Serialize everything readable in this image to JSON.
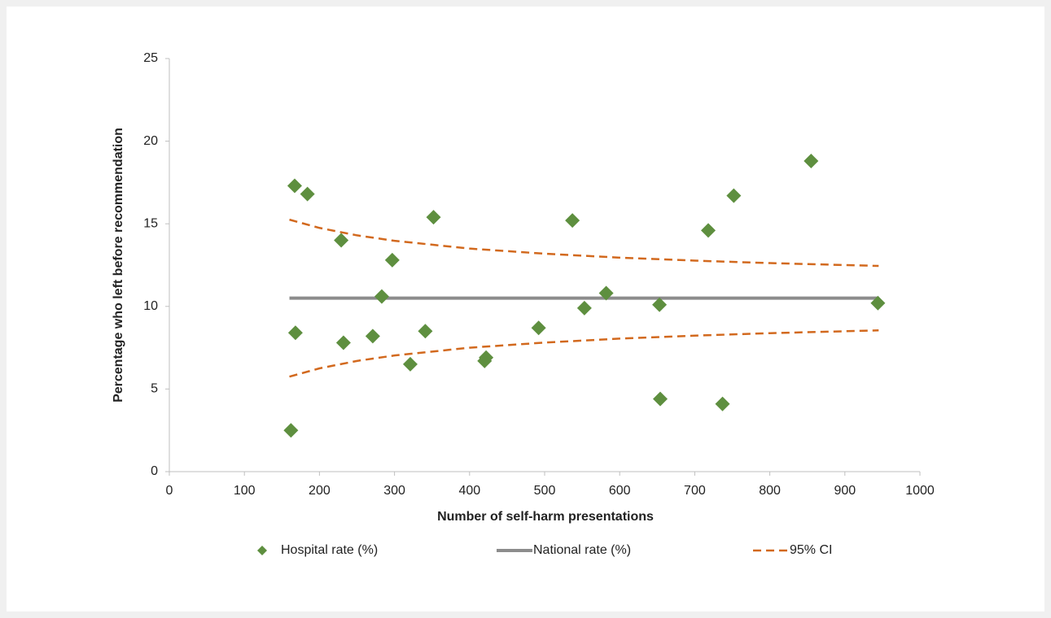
{
  "chart_data": {
    "type": "scatter",
    "x_label": "Number of self-harm presentations",
    "y_label": "Percentage who left before recommendation",
    "xlim": [
      0,
      1000
    ],
    "xticks": [
      0,
      100,
      200,
      300,
      400,
      500,
      600,
      700,
      800,
      900,
      1000
    ],
    "ylim": [
      0,
      25
    ],
    "yticks": [
      0,
      5,
      10,
      15,
      20,
      25
    ],
    "grid": false,
    "legend": "bottom",
    "series": [
      {
        "name": "Hospital rate (%)",
        "kind": "marker",
        "color": "#5e8f3f",
        "x": [
          162,
          167,
          168,
          184,
          229,
          232,
          271,
          283,
          297,
          321,
          341,
          352,
          420,
          422,
          492,
          537,
          553,
          582,
          653,
          654,
          718,
          737,
          752,
          855,
          944
        ],
        "values": [
          2.5,
          17.3,
          8.4,
          16.8,
          14.0,
          7.8,
          8.2,
          10.6,
          12.8,
          6.5,
          8.5,
          15.4,
          6.7,
          6.9,
          8.7,
          15.2,
          9.9,
          10.8,
          10.1,
          4.4,
          14.6,
          4.1,
          16.7,
          18.8,
          10.2
        ]
      },
      {
        "name": "National rate (%)",
        "kind": "line",
        "color": "#8c8c8c",
        "x": [
          160,
          945
        ],
        "values": [
          10.5,
          10.5
        ]
      },
      {
        "name": "95% CI",
        "kind": "dashed-band",
        "color": "#d2691e",
        "x": [
          160,
          200,
          250,
          300,
          400,
          500,
          600,
          700,
          800,
          945
        ],
        "upper": [
          15.25,
          14.75,
          14.3,
          13.97,
          13.5,
          13.19,
          12.95,
          12.77,
          12.62,
          12.45
        ],
        "lower": [
          5.75,
          6.25,
          6.7,
          7.03,
          7.5,
          7.81,
          8.05,
          8.23,
          8.38,
          8.55
        ]
      }
    ]
  }
}
